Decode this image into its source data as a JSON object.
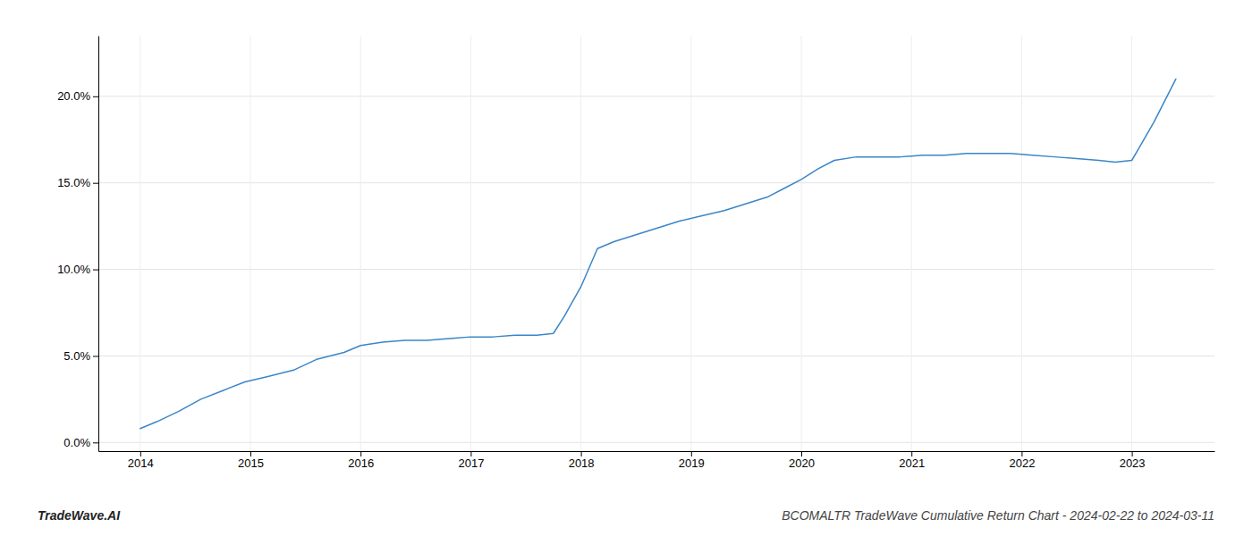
{
  "chart_data": {
    "type": "line",
    "title": "BCOMALTR TradeWave Cumulative Return Chart - 2024-02-22 to 2024-03-11",
    "annotations": [
      "TradeWave.AI"
    ],
    "color": "#3a86c8",
    "x": [
      2014.0,
      2014.15,
      2014.35,
      2014.55,
      2014.75,
      2014.95,
      2015.15,
      2015.4,
      2015.6,
      2015.85,
      2016.0,
      2016.2,
      2016.4,
      2016.6,
      2016.8,
      2017.0,
      2017.2,
      2017.4,
      2017.6,
      2017.75,
      2017.85,
      2018.0,
      2018.15,
      2018.3,
      2018.5,
      2018.7,
      2018.9,
      2019.1,
      2019.3,
      2019.5,
      2019.7,
      2019.85,
      2020.0,
      2020.15,
      2020.3,
      2020.5,
      2020.7,
      2020.9,
      2021.1,
      2021.3,
      2021.5,
      2021.7,
      2021.9,
      2022.1,
      2022.3,
      2022.5,
      2022.7,
      2022.85,
      2023.0,
      2023.2,
      2023.4
    ],
    "values": [
      0.008,
      0.012,
      0.018,
      0.025,
      0.03,
      0.035,
      0.038,
      0.042,
      0.048,
      0.052,
      0.056,
      0.058,
      0.059,
      0.059,
      0.06,
      0.061,
      0.061,
      0.062,
      0.062,
      0.063,
      0.073,
      0.09,
      0.112,
      0.116,
      0.12,
      0.124,
      0.128,
      0.131,
      0.134,
      0.138,
      0.142,
      0.147,
      0.152,
      0.158,
      0.163,
      0.165,
      0.165,
      0.165,
      0.166,
      0.166,
      0.167,
      0.167,
      0.167,
      0.166,
      0.165,
      0.164,
      0.163,
      0.162,
      0.163,
      0.185,
      0.21
    ],
    "xlim": [
      2013.62,
      2023.75
    ],
    "ylim": [
      -0.005,
      0.235
    ],
    "xticks": [
      2014,
      2015,
      2016,
      2017,
      2018,
      2019,
      2020,
      2021,
      2022,
      2023
    ],
    "yticks": [
      {
        "value": 0.0,
        "label": "0.0%"
      },
      {
        "value": 0.05,
        "label": "5.0%"
      },
      {
        "value": 0.1,
        "label": "10.0%"
      },
      {
        "value": 0.15,
        "label": "15.0%"
      },
      {
        "value": 0.2,
        "label": "20.0%"
      }
    ],
    "grid": true
  }
}
